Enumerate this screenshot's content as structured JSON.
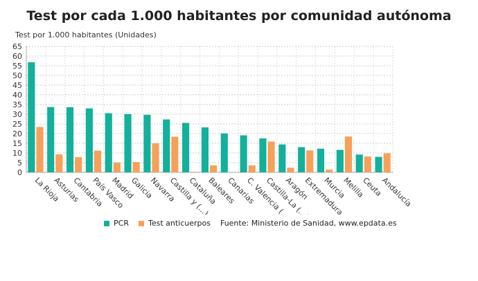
{
  "chart_data": {
    "type": "bar",
    "title": "Test por cada 1.000 habitantes por comunidad autónoma",
    "ylabel": "Test por 1.000 habitantes (Unidades)",
    "xlabel": "",
    "ylim": [
      0,
      65
    ],
    "yticks": [
      0,
      5,
      10,
      15,
      20,
      25,
      30,
      35,
      40,
      45,
      50,
      55,
      60,
      65
    ],
    "grid": true,
    "legend_position": "bottom",
    "categories": [
      "La Rioja",
      "Asturias",
      "Cantabria",
      "País Vasco",
      "Madrid",
      "Galicia",
      "Navarra",
      "Castilla y (...)",
      "Cataluña",
      "Baleares",
      "Canarias",
      "C. Valencia (...)",
      "Castilla-La (...)",
      "Aragón",
      "Extremadura",
      "Murcia",
      "Melilla",
      "Ceuta",
      "Andalucía"
    ],
    "series": [
      {
        "name": "PCR",
        "color": "#13b09b",
        "values": [
          56.8,
          33.7,
          33.6,
          33.0,
          30.5,
          30.1,
          29.7,
          27.3,
          25.5,
          23.2,
          20.1,
          19.1,
          17.5,
          14.4,
          13.0,
          12.2,
          11.6,
          9.2,
          8.0
        ]
      },
      {
        "name": "Test anticuerpos",
        "color": "#f7a05a",
        "values": [
          23.4,
          9.3,
          7.8,
          11.2,
          5.1,
          5.3,
          15.0,
          18.4,
          0.3,
          3.6,
          0,
          3.6,
          15.9,
          2.4,
          11.3,
          1.4,
          18.5,
          8.2,
          9.8
        ]
      }
    ],
    "source": "Fuente: Ministerio de Sanidad, www.epdata.es"
  }
}
